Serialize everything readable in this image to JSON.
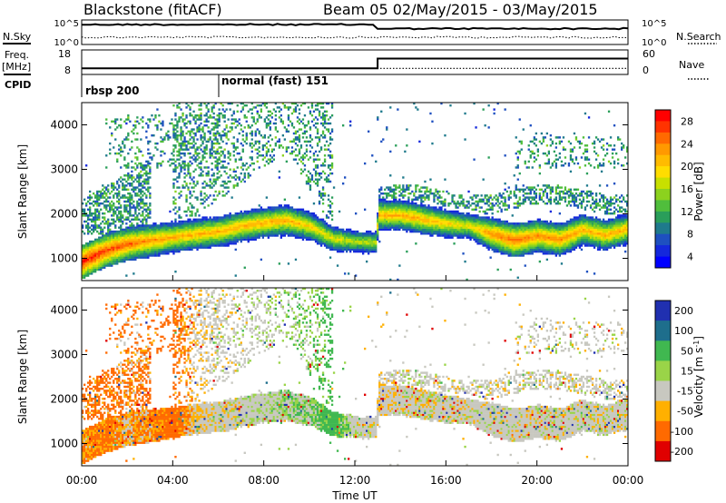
{
  "header": {
    "station": "Blackstone (fitACF)",
    "beam_dates": "Beam 05 02/May/2015 - 03/May/2015"
  },
  "left_labels": {
    "nsky": "N.Sky",
    "freq": "Freq.",
    "freq_unit": "[MHz]",
    "cpid": "CPID"
  },
  "right_labels": {
    "nsearch": "N.Search",
    "nave": "Nave"
  },
  "noise_panel": {
    "left_ticks": [
      "10^5",
      "10^0"
    ],
    "right_ticks": [
      "10^5",
      "10^0"
    ]
  },
  "freq_panel": {
    "left_ticks": [
      18,
      8
    ],
    "right_ticks": [
      60,
      0
    ]
  },
  "cpid_panel": {
    "segments": [
      {
        "label": "rbsp 200",
        "start_hour": 0
      },
      {
        "label": "normal (fast) 151",
        "start_hour": 6
      }
    ]
  },
  "power_colorbar": {
    "label": "Power [dB]",
    "ticks": [
      "28",
      "24",
      "20",
      "16",
      "12",
      "8",
      "4"
    ],
    "colors": [
      "#ff0000",
      "#ff3300",
      "#ff6a00",
      "#ff9900",
      "#ffbb00",
      "#ffdd00",
      "#c8e000",
      "#8cd21e",
      "#50be3c",
      "#2a9e5a",
      "#1f7a8c",
      "#1e50c0",
      "#1428dc",
      "#0000ff"
    ]
  },
  "velocity_colorbar": {
    "label": "Velocity [m s^-1]",
    "ticks": [
      "200",
      "100",
      "50",
      "15",
      "-15",
      "-50",
      "-100",
      "-200"
    ],
    "colors": [
      "#2030b0",
      "#1e6e8c",
      "#40b850",
      "#9ad448",
      "#c8c8c0",
      "#ffb000",
      "#ff6a00",
      "#e00000"
    ]
  },
  "chart_data": {
    "type": "heatmap",
    "xlabel": "Time UT",
    "x_ticks": [
      "00:00",
      "04:00",
      "08:00",
      "12:00",
      "16:00",
      "20:00",
      "00:00"
    ],
    "xlim_hours": [
      0,
      24
    ],
    "ylabel": "Slant Range [km]",
    "y_ticks": [
      1000,
      2000,
      3000,
      4000
    ],
    "ylim": [
      500,
      4500
    ],
    "panels": [
      {
        "name": "Power",
        "echo_band": {
          "hours": [
            0,
            1,
            2,
            3,
            4,
            5,
            6,
            7,
            8,
            9,
            10,
            11,
            12,
            12.9,
            13,
            14,
            15,
            16,
            17,
            18,
            19,
            20,
            21,
            22,
            23,
            24
          ],
          "center_km": [
            900,
            1150,
            1300,
            1380,
            1450,
            1520,
            1580,
            1700,
            1780,
            1830,
            1700,
            1420,
            1350,
            1330,
            1950,
            1950,
            1850,
            1760,
            1700,
            1520,
            1380,
            1480,
            1400,
            1620,
            1500,
            1650
          ],
          "peak_db": [
            30,
            28,
            26,
            24,
            22,
            22,
            22,
            22,
            22,
            22,
            20,
            18,
            16,
            16,
            22,
            22,
            22,
            20,
            18,
            24,
            26,
            24,
            24,
            22,
            22,
            22
          ]
        }
      },
      {
        "name": "Velocity",
        "dominant_velocity_m_s": [
          -30,
          -40,
          -20,
          -30,
          -50,
          -10,
          0,
          0,
          10,
          20,
          20,
          50,
          0,
          0,
          -10,
          0,
          0,
          0,
          0,
          0,
          0,
          0,
          0,
          0,
          0,
          0
        ]
      }
    ],
    "frequency_mhz": {
      "hours": [
        0,
        13,
        13,
        24
      ],
      "values": [
        10.5,
        10.5,
        14.5,
        14.5
      ]
    },
    "nave": {
      "hours": [
        0,
        24
      ],
      "values": [
        15,
        15
      ]
    }
  }
}
